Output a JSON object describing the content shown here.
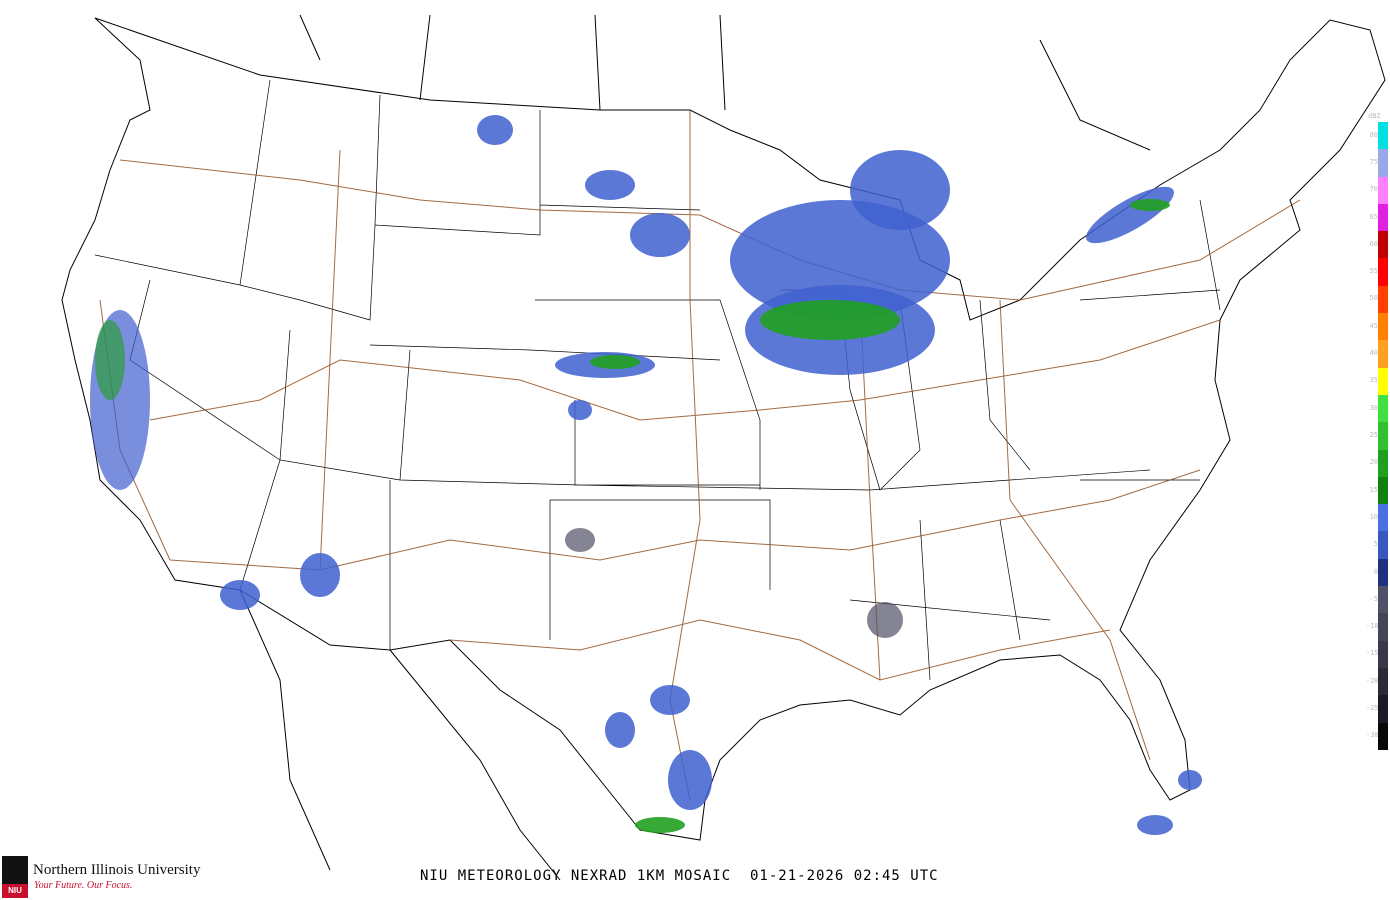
{
  "title": "NIU METEOROLOGY NEXRAD 1KM MOSAIC  01-21-2026 02:45 UTC",
  "logo": {
    "name": "Northern Illinois University",
    "tagline": "Your Future. Our Focus.",
    "mark": "NIU"
  },
  "legend": {
    "unit": "dBZ",
    "ticks": [
      "80",
      "75",
      "70",
      "65",
      "60",
      "55",
      "50",
      "45",
      "40",
      "35",
      "30",
      "25",
      "20",
      "15",
      "10",
      "5",
      "0",
      "-5",
      "-10",
      "-15",
      "-20",
      "-25",
      "-30"
    ],
    "colors": [
      "#00e0e0",
      "#9aa8e8",
      "#ff80ff",
      "#e020e0",
      "#c00000",
      "#ff0000",
      "#ff4000",
      "#ff8000",
      "#ffa020",
      "#ffff00",
      "#40e040",
      "#30c030",
      "#20a020",
      "#108010",
      "#4870e0",
      "#3858c0",
      "#203080",
      "#505068",
      "#454558",
      "#383848",
      "#2a2a38",
      "#1a1a24",
      "#080808"
    ]
  },
  "colors": {
    "land_border": "#000000",
    "highways": "#8b4513",
    "radar_light": "#4060d0",
    "radar_moderate": "#20a020"
  }
}
